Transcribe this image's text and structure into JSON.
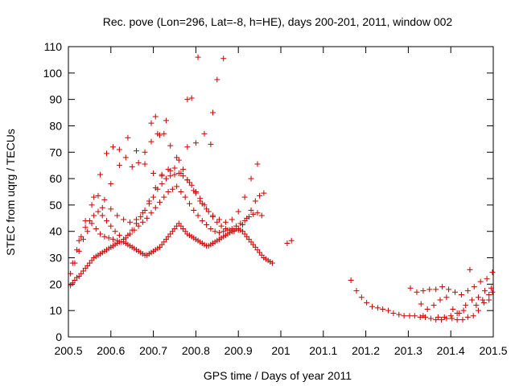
{
  "chart_data": {
    "type": "scatter",
    "title": "Rec. pove (Lon=296, Lat=-8, h=HE), days 200-201, 2011, window 002",
    "xlabel": "GPS time / Days of year 2011",
    "ylabel": "STEC from uqrg / TECUs",
    "xlim": [
      200.5,
      201.5
    ],
    "ylim": [
      0,
      110
    ],
    "xticks": [
      200.5,
      200.6,
      200.7,
      200.8,
      200.9,
      201,
      201.1,
      201.2,
      201.3,
      201.4,
      201.5
    ],
    "xtick_labels": [
      "200.5",
      "200.6",
      "200.7",
      "200.8",
      "200.9",
      "201",
      "201.1",
      "201.2",
      "201.3",
      "201.4",
      "201.5"
    ],
    "yticks": [
      0,
      10,
      20,
      30,
      40,
      50,
      60,
      70,
      80,
      90,
      100,
      110
    ],
    "ytick_labels": [
      "0",
      "10",
      "20",
      "30",
      "40",
      "50",
      "60",
      "70",
      "80",
      "90",
      "100",
      "110"
    ],
    "grid": false,
    "marker": "+",
    "color": "#cc0000",
    "series": [
      {
        "x": [
          200.505,
          200.51,
          200.515,
          200.52,
          200.525,
          200.53,
          200.535,
          200.54,
          200.545,
          200.55,
          200.555,
          200.56,
          200.565,
          200.57,
          200.575,
          200.58,
          200.585,
          200.59,
          200.595,
          200.6,
          200.605,
          200.61,
          200.615,
          200.62,
          200.625,
          200.63,
          200.635,
          200.64,
          200.645,
          200.65,
          200.655,
          200.66,
          200.665,
          200.67,
          200.675,
          200.68,
          200.685,
          200.69,
          200.695,
          200.7,
          200.705,
          200.71,
          200.715,
          200.72,
          200.725,
          200.73,
          200.735,
          200.74,
          200.745,
          200.75,
          200.755,
          200.76,
          200.765,
          200.77,
          200.775,
          200.78,
          200.785,
          200.79,
          200.795,
          200.8,
          200.805,
          200.81,
          200.815,
          200.82,
          200.825,
          200.83,
          200.835,
          200.84,
          200.845,
          200.85,
          200.855,
          200.86,
          200.865,
          200.87,
          200.875,
          200.88,
          200.885,
          200.89,
          200.895,
          200.9,
          200.905,
          200.91,
          200.915,
          200.92,
          200.925,
          200.93,
          200.935,
          200.94,
          200.945,
          200.95,
          200.955,
          200.96,
          200.965,
          200.97,
          200.975,
          200.98
        ],
        "y": [
          19.5,
          20.5,
          21.5,
          22.5,
          23.0,
          24.0,
          25.0,
          26.0,
          27.0,
          28.0,
          29.0,
          30.0,
          30.5,
          31.0,
          31.5,
          32.0,
          32.5,
          33.0,
          33.5,
          34.0,
          34.5,
          35.0,
          35.5,
          36.0,
          36.0,
          36.0,
          35.5,
          35.0,
          34.5,
          34.0,
          33.5,
          33.0,
          32.5,
          32.0,
          31.5,
          31.0,
          31.0,
          31.5,
          32.0,
          32.5,
          33.0,
          33.5,
          34.0,
          35.0,
          36.0,
          37.0,
          38.0,
          39.0,
          40.0,
          41.0,
          42.0,
          43.0,
          42.0,
          41.0,
          40.0,
          39.0,
          38.5,
          38.0,
          37.5,
          37.0,
          36.5,
          36.0,
          35.5,
          35.0,
          34.5,
          34.5,
          35.0,
          35.5,
          36.0,
          36.5,
          37.0,
          37.5,
          38.0,
          38.5,
          39.0,
          39.5,
          40.0,
          40.5,
          41.0,
          41.0,
          40.5,
          40.0,
          39.0,
          38.0,
          37.0,
          36.0,
          35.0,
          34.0,
          33.0,
          32.0,
          31.0,
          30.0,
          29.5,
          29.0,
          28.5,
          28.0
        ]
      },
      {
        "x": [
          200.505,
          200.515,
          200.525,
          200.535,
          200.545,
          200.555,
          200.565,
          200.575,
          200.585,
          200.595,
          200.605,
          200.615,
          200.625,
          200.635,
          200.645,
          200.655,
          200.665,
          200.675,
          200.685,
          200.695,
          200.705,
          200.715,
          200.725,
          200.735,
          200.745,
          200.755,
          200.765,
          200.775,
          200.785,
          200.795,
          200.805,
          200.815,
          200.825,
          200.835,
          200.845,
          200.855,
          200.865,
          200.875,
          200.885,
          200.895,
          200.905,
          200.915,
          200.925,
          200.935,
          200.945,
          200.955
        ],
        "y": [
          24.0,
          28.0,
          32.5,
          37.0,
          40.0,
          43.0,
          41.0,
          39.0,
          38.0,
          37.5,
          37.0,
          36.5,
          36.0,
          37.5,
          39.0,
          40.5,
          42.0,
          43.5,
          45.0,
          47.0,
          49.0,
          51.0,
          53.0,
          55.0,
          56.0,
          57.0,
          55.0,
          53.0,
          50.5,
          48.0,
          46.0,
          44.0,
          42.5,
          41.0,
          40.0,
          39.5,
          40.0,
          40.5,
          41.0,
          42.0,
          43.0,
          44.0,
          45.5,
          46.5,
          47.0,
          46.0
        ]
      },
      {
        "x": [
          200.51,
          200.52,
          200.53,
          200.54,
          200.55,
          200.56,
          200.57,
          200.58,
          200.59,
          200.6,
          200.61,
          200.62,
          200.63,
          200.64,
          200.65,
          200.66,
          200.67,
          200.68,
          200.69,
          200.7,
          200.71,
          200.72,
          200.73,
          200.74,
          200.75,
          200.76,
          200.77,
          200.78,
          200.79,
          200.8,
          200.81,
          200.82,
          200.83,
          200.84,
          200.85,
          200.86,
          200.87,
          200.88,
          200.89,
          200.9,
          200.91,
          200.92,
          200.93,
          200.94,
          200.95,
          200.96
        ],
        "y": [
          28.0,
          33.0,
          38.0,
          41.5,
          44.0,
          46.0,
          47.5,
          46.0,
          44.0,
          42.0,
          40.0,
          38.5,
          37.0,
          38.5,
          40.5,
          43.0,
          45.5,
          48.0,
          50.5,
          53.0,
          56.0,
          58.0,
          60.0,
          61.0,
          61.5,
          62.0,
          61.0,
          59.5,
          57.5,
          55.0,
          52.5,
          50.0,
          47.5,
          45.5,
          43.5,
          42.0,
          41.0,
          40.5,
          40.0,
          40.5,
          42.5,
          45.0,
          48.0,
          51.5,
          53.5,
          54.5
        ]
      },
      {
        "x": [
          200.525,
          200.54,
          200.555,
          200.57,
          200.585,
          200.6,
          200.615,
          200.63,
          200.645,
          200.66,
          200.675,
          200.69,
          200.705,
          200.72,
          200.735,
          200.75,
          200.765,
          200.78,
          200.795,
          200.81,
          200.825,
          200.84,
          200.855,
          200.87,
          200.885,
          200.9,
          200.915,
          200.93,
          200.945
        ],
        "y": [
          36.5,
          44.0,
          50.0,
          53.5,
          52.0,
          48.5,
          46.0,
          44.5,
          43.5,
          44.5,
          47.0,
          51.5,
          56.5,
          61.5,
          63.5,
          64.0,
          62.0,
          59.5,
          55.5,
          51.5,
          48.5,
          46.0,
          44.5,
          43.5,
          44.5,
          47.5,
          53.0,
          60.0,
          65.5
        ]
      },
      {
        "x": [
          200.56,
          200.575,
          200.59,
          200.605,
          200.62,
          200.635,
          200.65,
          200.665,
          200.68,
          200.695,
          200.71,
          200.725,
          200.74,
          200.755,
          200.77,
          200.785,
          200.8,
          200.815
        ],
        "y": [
          53.0,
          61.5,
          69.5,
          72.0,
          71.0,
          68.0,
          64.5,
          66.0,
          70.0,
          74.0,
          77.0,
          77.0,
          72.5,
          68.0,
          63.5,
          58.5,
          54.5,
          50.5
        ]
      },
      {
        "x": [
          200.58,
          200.6,
          200.62,
          200.64,
          200.66,
          200.68,
          200.7,
          200.72,
          200.74,
          200.76,
          200.78,
          200.8,
          200.82,
          200.84
        ],
        "y": [
          49.0,
          58.0,
          65.0,
          75.5,
          70.5,
          65.5,
          62.0,
          61.0,
          63.0,
          67.0,
          72.0,
          73.5,
          77.0,
          85.0
        ]
      },
      {
        "x": [
          200.695,
          200.705,
          200.715,
          200.73,
          200.78,
          200.79,
          200.805,
          200.835,
          200.85,
          200.865
        ],
        "y": [
          81.0,
          83.5,
          76.5,
          82.0,
          90.0,
          90.5,
          106.0,
          73.0,
          97.5,
          105.5
        ]
      },
      {
        "x": [
          201.015,
          201.025
        ],
        "y": [
          35.5,
          36.5
        ]
      },
      {
        "x": [
          201.165,
          201.178,
          201.19,
          201.202,
          201.215,
          201.228,
          201.24,
          201.253,
          201.265,
          201.278,
          201.29,
          201.303,
          201.315,
          201.328,
          201.34,
          201.353,
          201.365,
          201.378,
          201.39,
          201.403,
          201.415,
          201.428,
          201.44,
          201.453,
          201.465,
          201.478,
          201.49,
          201.498
        ],
        "y": [
          21.5,
          17.5,
          15.0,
          13.0,
          11.5,
          11.0,
          10.5,
          10.0,
          9.0,
          8.5,
          8.0,
          8.0,
          8.0,
          7.5,
          7.5,
          7.0,
          6.5,
          6.5,
          7.0,
          7.0,
          6.5,
          6.5,
          7.5,
          8.0,
          10.0,
          13.0,
          16.0,
          17.0
        ]
      },
      {
        "x": [
          201.305,
          201.32,
          201.335,
          201.35,
          201.365,
          201.38,
          201.395,
          201.41,
          201.425,
          201.44,
          201.455,
          201.47,
          201.485,
          201.498
        ],
        "y": [
          18.5,
          17.0,
          17.5,
          18.0,
          18.0,
          19.0,
          18.0,
          17.0,
          16.0,
          17.5,
          19.0,
          21.0,
          22.0,
          24.5
        ]
      },
      {
        "x": [
          201.33,
          201.345,
          201.36,
          201.375,
          201.39,
          201.405,
          201.42,
          201.435,
          201.45,
          201.465,
          201.48,
          201.495
        ],
        "y": [
          12.5,
          10.5,
          12.0,
          14.0,
          15.0,
          10.5,
          9.0,
          12.0,
          14.0,
          15.0,
          17.5,
          18.5
        ]
      },
      {
        "x": [
          201.335,
          201.37,
          201.385,
          201.4,
          201.415,
          201.43,
          201.445,
          201.46,
          201.475,
          201.49
        ],
        "y": [
          8.0,
          7.5,
          7.5,
          8.0,
          9.0,
          10.0,
          25.5,
          12.0,
          14.0,
          14.0
        ]
      }
    ]
  }
}
